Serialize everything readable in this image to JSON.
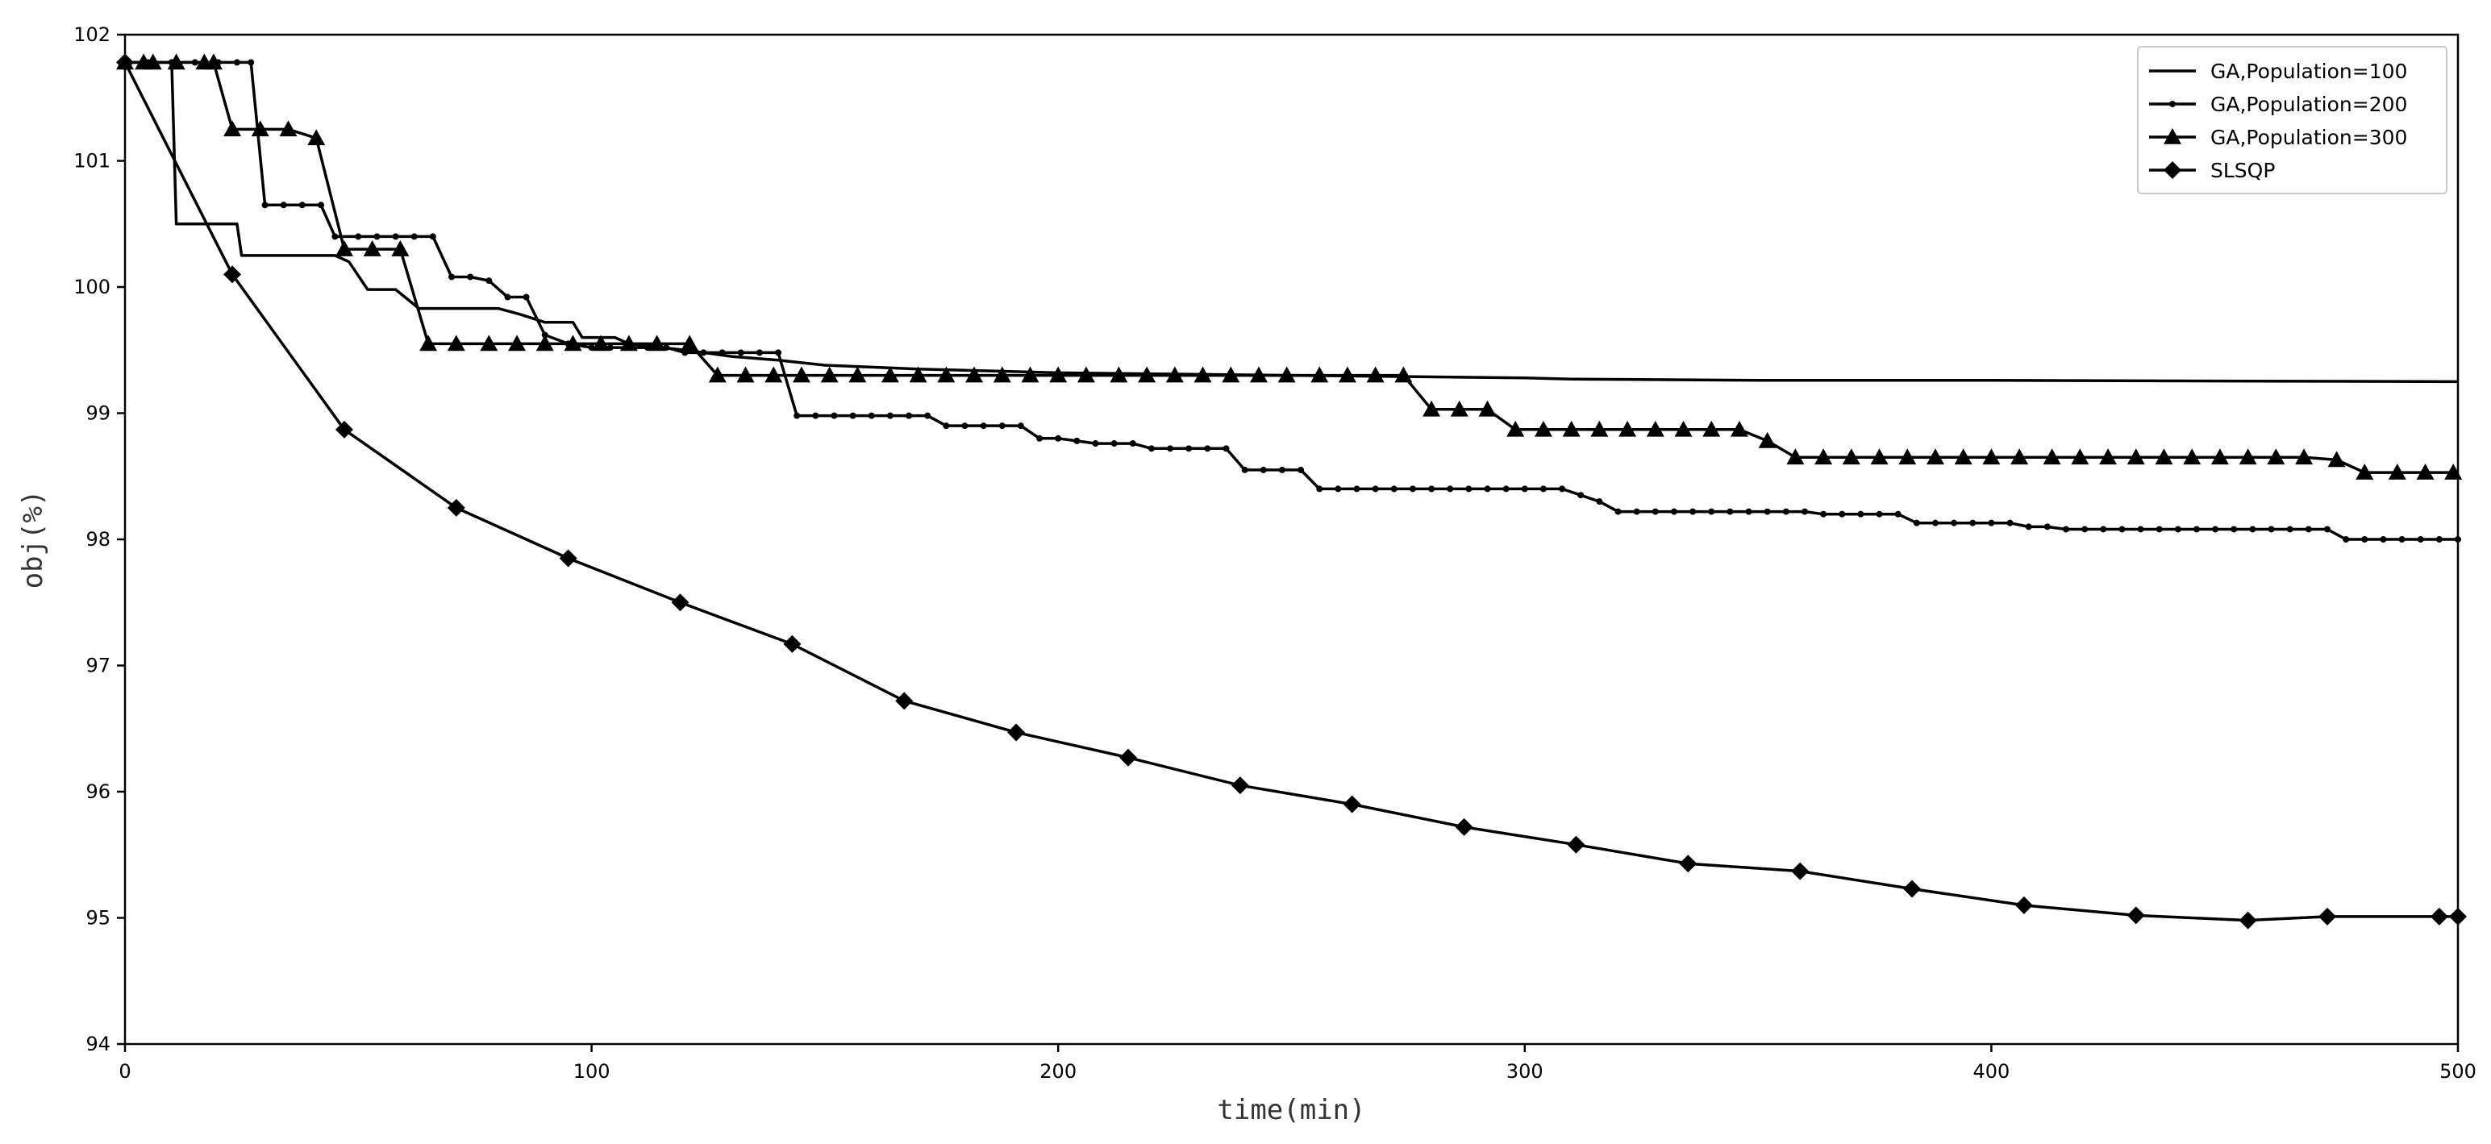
{
  "chart_data": {
    "type": "line",
    "xlabel": "time(min)",
    "ylabel": "obj(%)",
    "xlim": [
      0,
      500
    ],
    "ylim": [
      94,
      102
    ],
    "xticks": [
      0,
      100,
      200,
      300,
      400,
      500
    ],
    "yticks": [
      94,
      95,
      96,
      97,
      98,
      99,
      100,
      101,
      102
    ],
    "grid": false,
    "legend_position": "top-right",
    "series": [
      {
        "name": "GA,Population=100",
        "marker": "none",
        "points": [
          [
            0,
            101.78
          ],
          [
            10,
            101.78
          ],
          [
            11,
            100.5
          ],
          [
            24,
            100.5
          ],
          [
            25,
            100.25
          ],
          [
            45,
            100.25
          ],
          [
            48,
            100.2
          ],
          [
            52,
            99.98
          ],
          [
            58,
            99.98
          ],
          [
            63,
            99.83
          ],
          [
            80,
            99.83
          ],
          [
            85,
            99.78
          ],
          [
            90,
            99.72
          ],
          [
            96,
            99.72
          ],
          [
            98,
            99.6
          ],
          [
            105,
            99.6
          ],
          [
            108,
            99.55
          ],
          [
            120,
            99.5
          ],
          [
            130,
            99.45
          ],
          [
            140,
            99.42
          ],
          [
            150,
            99.38
          ],
          [
            170,
            99.35
          ],
          [
            200,
            99.32
          ],
          [
            250,
            99.3
          ],
          [
            300,
            99.28
          ],
          [
            310,
            99.27
          ],
          [
            350,
            99.26
          ],
          [
            400,
            99.26
          ],
          [
            500,
            99.25
          ]
        ]
      },
      {
        "name": "GA,Population=200",
        "marker": "circle",
        "points": [
          [
            0,
            101.78
          ],
          [
            5,
            101.78
          ],
          [
            10,
            101.78
          ],
          [
            15,
            101.78
          ],
          [
            20,
            101.78
          ],
          [
            24,
            101.78
          ],
          [
            27,
            101.78
          ],
          [
            30,
            100.65
          ],
          [
            34,
            100.65
          ],
          [
            38,
            100.65
          ],
          [
            42,
            100.65
          ],
          [
            45,
            100.4
          ],
          [
            50,
            100.4
          ],
          [
            54,
            100.4
          ],
          [
            58,
            100.4
          ],
          [
            62,
            100.4
          ],
          [
            66,
            100.4
          ],
          [
            70,
            100.08
          ],
          [
            74,
            100.08
          ],
          [
            78,
            100.05
          ],
          [
            82,
            99.92
          ],
          [
            86,
            99.92
          ],
          [
            90,
            99.62
          ],
          [
            95,
            99.55
          ],
          [
            100,
            99.52
          ],
          [
            104,
            99.52
          ],
          [
            108,
            99.52
          ],
          [
            112,
            99.52
          ],
          [
            116,
            99.52
          ],
          [
            120,
            99.48
          ],
          [
            124,
            99.48
          ],
          [
            128,
            99.48
          ],
          [
            132,
            99.48
          ],
          [
            136,
            99.48
          ],
          [
            140,
            99.48
          ],
          [
            144,
            98.98
          ],
          [
            148,
            98.98
          ],
          [
            152,
            98.98
          ],
          [
            156,
            98.98
          ],
          [
            160,
            98.98
          ],
          [
            164,
            98.98
          ],
          [
            168,
            98.98
          ],
          [
            172,
            98.98
          ],
          [
            176,
            98.9
          ],
          [
            180,
            98.9
          ],
          [
            184,
            98.9
          ],
          [
            188,
            98.9
          ],
          [
            192,
            98.9
          ],
          [
            196,
            98.8
          ],
          [
            200,
            98.8
          ],
          [
            204,
            98.78
          ],
          [
            208,
            98.76
          ],
          [
            212,
            98.76
          ],
          [
            216,
            98.76
          ],
          [
            220,
            98.72
          ],
          [
            224,
            98.72
          ],
          [
            228,
            98.72
          ],
          [
            232,
            98.72
          ],
          [
            236,
            98.72
          ],
          [
            240,
            98.55
          ],
          [
            244,
            98.55
          ],
          [
            248,
            98.55
          ],
          [
            252,
            98.55
          ],
          [
            256,
            98.4
          ],
          [
            260,
            98.4
          ],
          [
            264,
            98.4
          ],
          [
            268,
            98.4
          ],
          [
            272,
            98.4
          ],
          [
            276,
            98.4
          ],
          [
            280,
            98.4
          ],
          [
            284,
            98.4
          ],
          [
            288,
            98.4
          ],
          [
            292,
            98.4
          ],
          [
            296,
            98.4
          ],
          [
            300,
            98.4
          ],
          [
            304,
            98.4
          ],
          [
            308,
            98.4
          ],
          [
            312,
            98.35
          ],
          [
            316,
            98.3
          ],
          [
            320,
            98.22
          ],
          [
            324,
            98.22
          ],
          [
            328,
            98.22
          ],
          [
            332,
            98.22
          ],
          [
            336,
            98.22
          ],
          [
            340,
            98.22
          ],
          [
            344,
            98.22
          ],
          [
            348,
            98.22
          ],
          [
            352,
            98.22
          ],
          [
            356,
            98.22
          ],
          [
            360,
            98.22
          ],
          [
            364,
            98.2
          ],
          [
            368,
            98.2
          ],
          [
            372,
            98.2
          ],
          [
            376,
            98.2
          ],
          [
            380,
            98.2
          ],
          [
            384,
            98.13
          ],
          [
            388,
            98.13
          ],
          [
            392,
            98.13
          ],
          [
            396,
            98.13
          ],
          [
            400,
            98.13
          ],
          [
            404,
            98.13
          ],
          [
            408,
            98.1
          ],
          [
            412,
            98.1
          ],
          [
            416,
            98.08
          ],
          [
            420,
            98.08
          ],
          [
            424,
            98.08
          ],
          [
            428,
            98.08
          ],
          [
            432,
            98.08
          ],
          [
            436,
            98.08
          ],
          [
            440,
            98.08
          ],
          [
            444,
            98.08
          ],
          [
            448,
            98.08
          ],
          [
            452,
            98.08
          ],
          [
            456,
            98.08
          ],
          [
            460,
            98.08
          ],
          [
            464,
            98.08
          ],
          [
            468,
            98.08
          ],
          [
            472,
            98.08
          ],
          [
            476,
            98.0
          ],
          [
            480,
            98.0
          ],
          [
            484,
            98.0
          ],
          [
            488,
            98.0
          ],
          [
            492,
            98.0
          ],
          [
            496,
            98.0
          ],
          [
            500,
            98.0
          ]
        ]
      },
      {
        "name": "GA,Population=300",
        "marker": "triangle",
        "points": [
          [
            0,
            101.78
          ],
          [
            4,
            101.78
          ],
          [
            6,
            101.78
          ],
          [
            11,
            101.78
          ],
          [
            17,
            101.78
          ],
          [
            19,
            101.78
          ],
          [
            23,
            101.25
          ],
          [
            29,
            101.25
          ],
          [
            35,
            101.25
          ],
          [
            41,
            101.18
          ],
          [
            47,
            100.3
          ],
          [
            53,
            100.3
          ],
          [
            59,
            100.3
          ],
          [
            65,
            99.55
          ],
          [
            71,
            99.55
          ],
          [
            78,
            99.55
          ],
          [
            84,
            99.55
          ],
          [
            90,
            99.55
          ],
          [
            96,
            99.55
          ],
          [
            102,
            99.55
          ],
          [
            108,
            99.55
          ],
          [
            114,
            99.55
          ],
          [
            121,
            99.55
          ],
          [
            127,
            99.3
          ],
          [
            133,
            99.3
          ],
          [
            139,
            99.3
          ],
          [
            145,
            99.3
          ],
          [
            151,
            99.3
          ],
          [
            157,
            99.3
          ],
          [
            164,
            99.3
          ],
          [
            170,
            99.3
          ],
          [
            176,
            99.3
          ],
          [
            182,
            99.3
          ],
          [
            188,
            99.3
          ],
          [
            194,
            99.3
          ],
          [
            200,
            99.3
          ],
          [
            206,
            99.3
          ],
          [
            213,
            99.3
          ],
          [
            219,
            99.3
          ],
          [
            225,
            99.3
          ],
          [
            231,
            99.3
          ],
          [
            237,
            99.3
          ],
          [
            243,
            99.3
          ],
          [
            249,
            99.3
          ],
          [
            256,
            99.3
          ],
          [
            262,
            99.3
          ],
          [
            268,
            99.3
          ],
          [
            274,
            99.3
          ],
          [
            280,
            99.03
          ],
          [
            286,
            99.03
          ],
          [
            292,
            99.03
          ],
          [
            298,
            98.87
          ],
          [
            304,
            98.87
          ],
          [
            310,
            98.87
          ],
          [
            316,
            98.87
          ],
          [
            322,
            98.87
          ],
          [
            328,
            98.87
          ],
          [
            334,
            98.87
          ],
          [
            340,
            98.87
          ],
          [
            346,
            98.87
          ],
          [
            352,
            98.78
          ],
          [
            358,
            98.65
          ],
          [
            364,
            98.65
          ],
          [
            370,
            98.65
          ],
          [
            376,
            98.65
          ],
          [
            382,
            98.65
          ],
          [
            388,
            98.65
          ],
          [
            394,
            98.65
          ],
          [
            400,
            98.65
          ],
          [
            406,
            98.65
          ],
          [
            413,
            98.65
          ],
          [
            419,
            98.65
          ],
          [
            425,
            98.65
          ],
          [
            431,
            98.65
          ],
          [
            437,
            98.65
          ],
          [
            443,
            98.65
          ],
          [
            449,
            98.65
          ],
          [
            455,
            98.65
          ],
          [
            461,
            98.65
          ],
          [
            467,
            98.65
          ],
          [
            474,
            98.63
          ],
          [
            480,
            98.53
          ],
          [
            487,
            98.53
          ],
          [
            493,
            98.53
          ],
          [
            499,
            98.53
          ]
        ]
      },
      {
        "name": "SLSQP",
        "marker": "diamond",
        "points": [
          [
            0,
            101.78
          ],
          [
            23,
            100.1
          ],
          [
            47,
            98.87
          ],
          [
            71,
            98.25
          ],
          [
            95,
            97.85
          ],
          [
            119,
            97.5
          ],
          [
            143,
            97.17
          ],
          [
            167,
            96.72
          ],
          [
            191,
            96.47
          ],
          [
            215,
            96.27
          ],
          [
            239,
            96.05
          ],
          [
            263,
            95.9
          ],
          [
            287,
            95.72
          ],
          [
            311,
            95.58
          ],
          [
            335,
            95.43
          ],
          [
            359,
            95.37
          ],
          [
            383,
            95.23
          ],
          [
            407,
            95.1
          ],
          [
            431,
            95.02
          ],
          [
            455,
            94.98
          ],
          [
            472,
            95.01
          ],
          [
            496,
            95.01
          ],
          [
            500,
            95.01
          ]
        ]
      }
    ]
  }
}
